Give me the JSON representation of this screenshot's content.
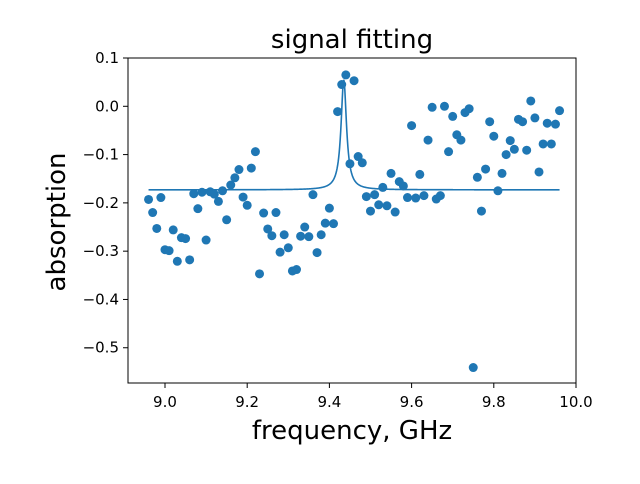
{
  "chart_data": {
    "type": "scatter",
    "title": "signal fitting",
    "xlabel": "frequency, GHz",
    "ylabel": "absorption",
    "xlim": [
      8.91,
      10.0
    ],
    "ylim": [
      -0.573,
      0.1
    ],
    "xticks": [
      9.0,
      9.2,
      9.4,
      9.6,
      9.8,
      10.0
    ],
    "xtick_labels": [
      "9.0",
      "9.2",
      "9.4",
      "9.6",
      "9.8",
      "10.0"
    ],
    "yticks": [
      0.1,
      0.0,
      -0.1,
      -0.2,
      -0.3,
      -0.4,
      -0.5
    ],
    "ytick_labels": [
      "0.1",
      "0.0",
      "−0.1",
      "−0.2",
      "−0.3",
      "−0.4",
      "−0.5"
    ],
    "grid": false,
    "colors": {
      "series": "#1f77b4"
    },
    "series": [
      {
        "kind": "scatter",
        "x": [
          8.96,
          8.97,
          8.98,
          8.99,
          9.0,
          9.01,
          9.02,
          9.03,
          9.04,
          9.05,
          9.06,
          9.07,
          9.08,
          9.09,
          9.1,
          9.11,
          9.12,
          9.13,
          9.14,
          9.15,
          9.16,
          9.17,
          9.18,
          9.19,
          9.2,
          9.21,
          9.22,
          9.23,
          9.24,
          9.25,
          9.26,
          9.27,
          9.28,
          9.29,
          9.3,
          9.31,
          9.32,
          9.33,
          9.34,
          9.35,
          9.36,
          9.37,
          9.38,
          9.39,
          9.4,
          9.41,
          9.42,
          9.43,
          9.44,
          9.45,
          9.46,
          9.47,
          9.48,
          9.49,
          9.5,
          9.51,
          9.52,
          9.53,
          9.54,
          9.55,
          9.56,
          9.57,
          9.58,
          9.59,
          9.6,
          9.61,
          9.62,
          9.63,
          9.64,
          9.65,
          9.66,
          9.67,
          9.68,
          9.69,
          9.7,
          9.71,
          9.72,
          9.73,
          9.74,
          9.75,
          9.76,
          9.77,
          9.78,
          9.79,
          9.8,
          9.81,
          9.82,
          9.83,
          9.84,
          9.85,
          9.86,
          9.87,
          9.88,
          9.89,
          9.9,
          9.91,
          9.92,
          9.93,
          9.94,
          9.95,
          9.96
        ],
        "y": [
          -0.193,
          -0.22,
          -0.253,
          -0.189,
          -0.297,
          -0.299,
          -0.256,
          -0.321,
          -0.272,
          -0.274,
          -0.318,
          -0.181,
          -0.212,
          -0.178,
          -0.277,
          -0.177,
          -0.182,
          -0.197,
          -0.175,
          -0.235,
          -0.163,
          -0.148,
          -0.131,
          -0.188,
          -0.205,
          -0.128,
          -0.094,
          -0.347,
          -0.221,
          -0.254,
          -0.268,
          -0.22,
          -0.302,
          -0.266,
          -0.293,
          -0.341,
          -0.338,
          -0.269,
          -0.25,
          -0.27,
          -0.183,
          -0.303,
          -0.266,
          -0.242,
          -0.211,
          -0.243,
          -0.011,
          0.045,
          0.065,
          -0.119,
          0.053,
          -0.104,
          -0.117,
          -0.187,
          -0.217,
          -0.183,
          -0.204,
          -0.168,
          -0.206,
          -0.139,
          -0.219,
          -0.156,
          -0.165,
          -0.189,
          -0.04,
          -0.19,
          -0.141,
          -0.185,
          -0.07,
          -0.002,
          -0.192,
          -0.185,
          0.0,
          -0.094,
          -0.021,
          -0.059,
          -0.07,
          -0.013,
          -0.005,
          -0.541,
          -0.147,
          -0.217,
          -0.13,
          -0.032,
          -0.062,
          -0.175,
          -0.139,
          -0.1,
          -0.071,
          -0.089,
          -0.027,
          -0.032,
          -0.091,
          0.011,
          -0.024,
          -0.136,
          -0.078,
          -0.035,
          -0.078,
          -0.037,
          -0.009
        ]
      },
      {
        "kind": "line",
        "model": "lorentzian",
        "baseline": -0.173,
        "amplitude": 0.228,
        "center": 9.435,
        "hwhm": 0.008,
        "xrange": [
          8.96,
          9.96
        ]
      }
    ]
  }
}
